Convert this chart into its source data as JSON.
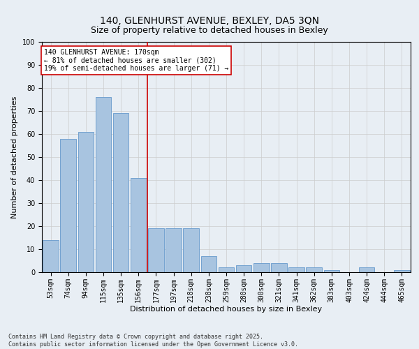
{
  "title": "140, GLENHURST AVENUE, BEXLEY, DA5 3QN",
  "subtitle": "Size of property relative to detached houses in Bexley",
  "xlabel": "Distribution of detached houses by size in Bexley",
  "ylabel": "Number of detached properties",
  "categories": [
    "53sqm",
    "74sqm",
    "94sqm",
    "115sqm",
    "135sqm",
    "156sqm",
    "177sqm",
    "197sqm",
    "218sqm",
    "238sqm",
    "259sqm",
    "280sqm",
    "300sqm",
    "321sqm",
    "341sqm",
    "362sqm",
    "383sqm",
    "403sqm",
    "424sqm",
    "444sqm",
    "465sqm"
  ],
  "values": [
    14,
    58,
    61,
    76,
    69,
    41,
    19,
    19,
    19,
    7,
    2,
    3,
    4,
    4,
    2,
    2,
    1,
    0,
    2,
    0,
    1
  ],
  "bar_color": "#a8c4e0",
  "bar_edge_color": "#6699cc",
  "vline_x_idx": 6,
  "vline_color": "#cc0000",
  "annotation_text": "140 GLENHURST AVENUE: 170sqm\n← 81% of detached houses are smaller (302)\n19% of semi-detached houses are larger (71) →",
  "annotation_box_color": "#ffffff",
  "annotation_box_edge": "#cc0000",
  "ylim": [
    0,
    100
  ],
  "yticks": [
    0,
    10,
    20,
    30,
    40,
    50,
    60,
    70,
    80,
    90,
    100
  ],
  "grid_color": "#cccccc",
  "background_color": "#e8eef4",
  "footer": "Contains HM Land Registry data © Crown copyright and database right 2025.\nContains public sector information licensed under the Open Government Licence v3.0.",
  "title_fontsize": 10,
  "subtitle_fontsize": 9,
  "xlabel_fontsize": 8,
  "ylabel_fontsize": 8,
  "tick_fontsize": 7,
  "annotation_fontsize": 7,
  "footer_fontsize": 6
}
